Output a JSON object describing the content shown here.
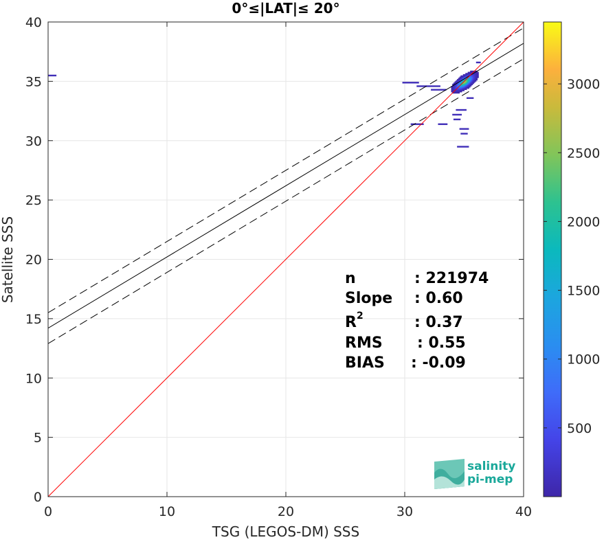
{
  "chart_data": {
    "type": "heatmap",
    "title": "0°≤|LAT|≤ 20°",
    "xlabel": "TSG (LEGOS-DM) SSS",
    "ylabel": "Satellite SSS",
    "xlim": [
      0,
      40
    ],
    "ylim": [
      0,
      40
    ],
    "xticks": [
      "0",
      "10",
      "20",
      "30",
      "40"
    ],
    "yticks": [
      "0",
      "5",
      "10",
      "15",
      "20",
      "25",
      "30",
      "35",
      "40"
    ],
    "grid": true,
    "colorbar": {
      "min": 0,
      "max": 3450,
      "ticks": [
        "500",
        "1000",
        "1500",
        "2000",
        "2500",
        "3000"
      ],
      "tick_values": [
        500,
        1000,
        1500,
        2000,
        2500,
        3000
      ]
    },
    "colors": {
      "identity_line": "#ff0000",
      "fit_line": "#000000"
    },
    "lines": {
      "identity": {
        "intercept": 0,
        "slope": 1
      },
      "fit": {
        "intercept": 14.2,
        "slope": 0.6
      },
      "fit_upper": {
        "intercept": 15.5,
        "slope": 0.6
      },
      "fit_lower": {
        "intercept": 12.9,
        "slope": 0.6
      }
    },
    "stats": [
      {
        "key": "n",
        "value": ": 221974"
      },
      {
        "key": "Slope",
        "value": ": 0.60"
      },
      {
        "key": "R",
        "sup": "2",
        "value": ": 0.37"
      },
      {
        "key": "RMS",
        "value": ": 0.55"
      },
      {
        "key": "BIAS",
        "value": ": -0.09"
      }
    ],
    "density": {
      "core": {
        "x": 35.0,
        "y": 34.9,
        "max_count": 3400
      },
      "outliers": [
        {
          "x0": 0.0,
          "x1": 0.7,
          "y": 35.5
        },
        {
          "x0": 29.8,
          "x1": 31.2,
          "y": 34.9
        },
        {
          "x0": 31.0,
          "x1": 33.0,
          "y": 34.6
        },
        {
          "x0": 32.2,
          "x1": 33.5,
          "y": 34.3
        },
        {
          "x0": 30.5,
          "x1": 31.6,
          "y": 31.4
        },
        {
          "x0": 32.8,
          "x1": 33.6,
          "y": 31.4
        },
        {
          "x0": 34.3,
          "x1": 35.2,
          "y": 32.6
        },
        {
          "x0": 34.0,
          "x1": 34.8,
          "y": 32.2
        },
        {
          "x0": 34.1,
          "x1": 34.7,
          "y": 31.8
        },
        {
          "x0": 34.6,
          "x1": 35.4,
          "y": 31.0
        },
        {
          "x0": 34.7,
          "x1": 35.3,
          "y": 30.6
        },
        {
          "x0": 34.4,
          "x1": 35.4,
          "y": 29.5
        },
        {
          "x0": 35.2,
          "x1": 35.8,
          "y": 33.6
        },
        {
          "x0": 36.0,
          "x1": 36.4,
          "y": 36.6
        }
      ]
    }
  },
  "logo": {
    "line1": "salinity",
    "line2": "pi-mep"
  }
}
